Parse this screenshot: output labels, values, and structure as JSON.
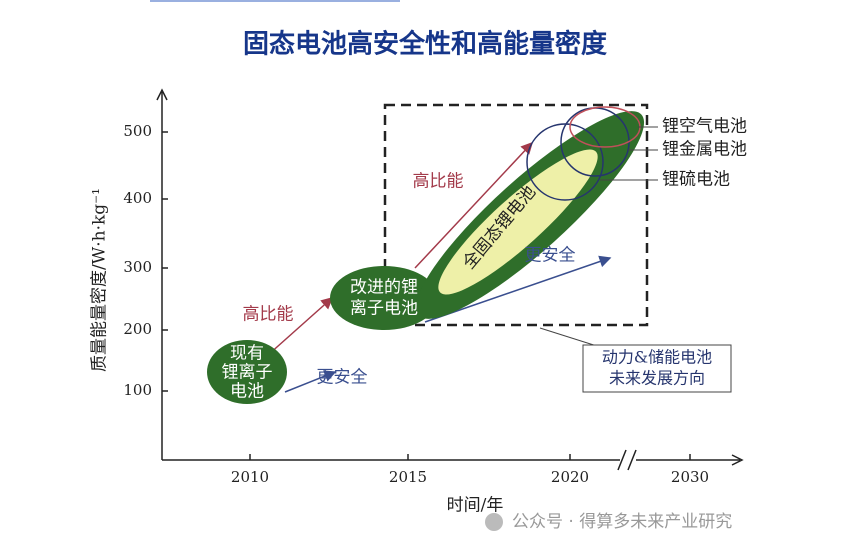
{
  "title": "固态电池高安全性和高能量密度",
  "y_axis": {
    "label": "质量能量密度/W·h·kg⁻¹",
    "ticks": [
      "100",
      "200",
      "300",
      "400",
      "500"
    ]
  },
  "x_axis": {
    "label": "时间/年",
    "ticks": [
      "2010",
      "2015",
      "2020",
      "2030"
    ]
  },
  "nodes": [
    {
      "lines": [
        "现有",
        "锂离子",
        "电池"
      ]
    },
    {
      "lines": [
        "改进的锂",
        "离子电池"
      ]
    },
    {
      "lines": [
        "全固态锂电池"
      ]
    }
  ],
  "arrows": [
    "高比能",
    "更安全",
    "高比能",
    "更安全"
  ],
  "callouts": [
    "锂空气电池",
    "锂金属电池",
    "锂硫电池"
  ],
  "box_label": [
    "动力&储能电池",
    "未来发展方向"
  ],
  "watermark": "公众号 · 得算多未来产业研究"
}
